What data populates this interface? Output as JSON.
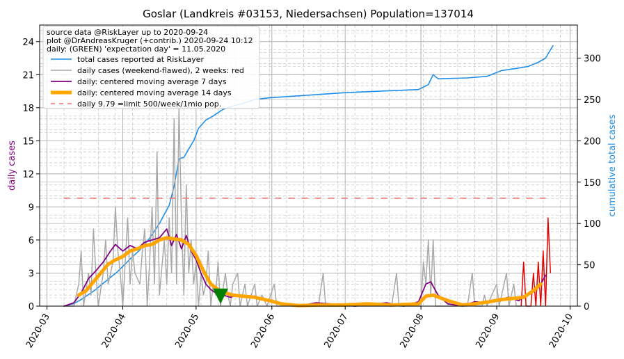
{
  "chart_data": {
    "type": "line",
    "title": "Goslar (Landkreis #03153, Niedersachsen) Population=137014",
    "ylabel_left": "daily cases",
    "ylabel_right": "cumulative total cases",
    "ylim_left": [
      0,
      25.5
    ],
    "ylim_right": [
      0,
      340
    ],
    "yticks_left": [
      0,
      3,
      6,
      9,
      12,
      15,
      18,
      21,
      24
    ],
    "yticks_right": [
      0,
      50,
      100,
      150,
      200,
      250,
      300
    ],
    "x_range": [
      "2020-02-27",
      "2020-10-04"
    ],
    "xticks": [
      "2020-03",
      "2020-04",
      "2020-05",
      "2020-06",
      "2020-07",
      "2020-08",
      "2020-09",
      "2020-10"
    ],
    "xtick_dates": [
      "2020-03-01",
      "2020-04-01",
      "2020-05-01",
      "2020-06-01",
      "2020-07-01",
      "2020-08-01",
      "2020-09-01",
      "2020-10-01"
    ],
    "grid": true,
    "legend_position": "top-left",
    "annotation": {
      "lines": [
        "source data @RiskLayer up to 2020-09-24",
        "plot @DrAndreasKruger (+contrib.) 2020-09-24 10:12",
        "daily: (GREEN) 'expectation day' = 11.05.2020"
      ]
    },
    "expectation_day": {
      "date": "2020-05-11",
      "value": 0.9,
      "color": "#008000"
    },
    "series": [
      {
        "name": "total cases reported at RiskLayer",
        "axis": "right",
        "color": "#1f8ee8",
        "width": 1.6,
        "points": [
          [
            "2020-03-08",
            0
          ],
          [
            "2020-03-12",
            3
          ],
          [
            "2020-03-15",
            8
          ],
          [
            "2020-03-20",
            18
          ],
          [
            "2020-03-25",
            30
          ],
          [
            "2020-03-30",
            42
          ],
          [
            "2020-04-04",
            57
          ],
          [
            "2020-04-08",
            68
          ],
          [
            "2020-04-12",
            82
          ],
          [
            "2020-04-16",
            100
          ],
          [
            "2020-04-20",
            122
          ],
          [
            "2020-04-22",
            145
          ],
          [
            "2020-04-24",
            178
          ],
          [
            "2020-04-26",
            180
          ],
          [
            "2020-04-28",
            190
          ],
          [
            "2020-04-30",
            200
          ],
          [
            "2020-05-02",
            215
          ],
          [
            "2020-05-05",
            225
          ],
          [
            "2020-05-08",
            230
          ],
          [
            "2020-05-12",
            238
          ],
          [
            "2020-05-16",
            242
          ],
          [
            "2020-05-20",
            245
          ],
          [
            "2020-05-25",
            250
          ],
          [
            "2020-05-31",
            252
          ],
          [
            "2020-06-10",
            254
          ],
          [
            "2020-06-20",
            256
          ],
          [
            "2020-06-30",
            258
          ],
          [
            "2020-07-15",
            260
          ],
          [
            "2020-07-31",
            262
          ],
          [
            "2020-08-04",
            268
          ],
          [
            "2020-08-06",
            280
          ],
          [
            "2020-08-08",
            275
          ],
          [
            "2020-08-20",
            276
          ],
          [
            "2020-08-28",
            278
          ],
          [
            "2020-09-03",
            285
          ],
          [
            "2020-09-10",
            288
          ],
          [
            "2020-09-14",
            290
          ],
          [
            "2020-09-18",
            295
          ],
          [
            "2020-09-21",
            300
          ],
          [
            "2020-09-23",
            310
          ],
          [
            "2020-09-24",
            315
          ]
        ]
      },
      {
        "name": "daily cases (weekend-flawed), 2 weeks: red",
        "axis": "left",
        "color": "#a9a9a9",
        "red_color": "#e00000",
        "width": 1.5,
        "red_from": "2020-09-11",
        "points": [
          [
            "2020-03-08",
            0
          ],
          [
            "2020-03-12",
            0
          ],
          [
            "2020-03-14",
            2
          ],
          [
            "2020-03-15",
            5
          ],
          [
            "2020-03-16",
            0
          ],
          [
            "2020-03-18",
            3
          ],
          [
            "2020-03-19",
            1
          ],
          [
            "2020-03-20",
            7
          ],
          [
            "2020-03-21",
            3
          ],
          [
            "2020-03-22",
            0
          ],
          [
            "2020-03-24",
            3
          ],
          [
            "2020-03-25",
            6
          ],
          [
            "2020-03-26",
            2
          ],
          [
            "2020-03-28",
            4
          ],
          [
            "2020-03-29",
            9
          ],
          [
            "2020-03-30",
            5
          ],
          [
            "2020-03-31",
            3
          ],
          [
            "2020-04-01",
            0
          ],
          [
            "2020-04-03",
            8
          ],
          [
            "2020-04-04",
            2
          ],
          [
            "2020-04-05",
            5
          ],
          [
            "2020-04-06",
            3
          ],
          [
            "2020-04-08",
            2
          ],
          [
            "2020-04-09",
            5
          ],
          [
            "2020-04-10",
            7
          ],
          [
            "2020-04-11",
            0
          ],
          [
            "2020-04-12",
            4
          ],
          [
            "2020-04-13",
            9
          ],
          [
            "2020-04-14",
            2
          ],
          [
            "2020-04-15",
            14
          ],
          [
            "2020-04-16",
            1
          ],
          [
            "2020-04-18",
            6
          ],
          [
            "2020-04-19",
            2
          ],
          [
            "2020-04-20",
            8
          ],
          [
            "2020-04-21",
            3
          ],
          [
            "2020-04-22",
            17
          ],
          [
            "2020-04-23",
            2
          ],
          [
            "2020-04-24",
            18
          ],
          [
            "2020-04-25",
            8
          ],
          [
            "2020-04-26",
            1
          ],
          [
            "2020-04-27",
            11
          ],
          [
            "2020-04-28",
            3
          ],
          [
            "2020-04-29",
            6
          ],
          [
            "2020-04-30",
            2
          ],
          [
            "2020-05-01",
            4
          ],
          [
            "2020-05-02",
            0
          ],
          [
            "2020-05-03",
            3
          ],
          [
            "2020-05-04",
            1
          ],
          [
            "2020-05-05",
            2
          ],
          [
            "2020-05-06",
            5
          ],
          [
            "2020-05-07",
            0
          ],
          [
            "2020-05-08",
            2
          ],
          [
            "2020-05-09",
            1
          ],
          [
            "2020-05-10",
            4
          ],
          [
            "2020-05-11",
            0
          ],
          [
            "2020-05-13",
            3
          ],
          [
            "2020-05-14",
            1
          ],
          [
            "2020-05-15",
            0
          ],
          [
            "2020-05-16",
            2
          ],
          [
            "2020-05-18",
            3
          ],
          [
            "2020-05-19",
            0
          ],
          [
            "2020-05-21",
            2
          ],
          [
            "2020-05-22",
            0
          ],
          [
            "2020-05-25",
            2
          ],
          [
            "2020-05-26",
            0
          ],
          [
            "2020-05-28",
            1
          ],
          [
            "2020-05-30",
            0
          ],
          [
            "2020-06-02",
            2
          ],
          [
            "2020-06-03",
            0
          ],
          [
            "2020-06-20",
            0
          ],
          [
            "2020-06-22",
            3
          ],
          [
            "2020-06-23",
            0
          ],
          [
            "2020-07-20",
            0
          ],
          [
            "2020-07-22",
            3
          ],
          [
            "2020-07-23",
            0
          ],
          [
            "2020-08-01",
            0
          ],
          [
            "2020-08-02",
            4
          ],
          [
            "2020-08-03",
            2
          ],
          [
            "2020-08-04",
            6
          ],
          [
            "2020-08-05",
            1
          ],
          [
            "2020-08-06",
            6
          ],
          [
            "2020-08-07",
            0
          ],
          [
            "2020-08-20",
            0
          ],
          [
            "2020-08-22",
            3
          ],
          [
            "2020-08-23",
            0
          ],
          [
            "2020-08-26",
            0
          ],
          [
            "2020-08-27",
            1
          ],
          [
            "2020-08-28",
            0
          ],
          [
            "2020-09-01",
            2
          ],
          [
            "2020-09-02",
            0
          ],
          [
            "2020-09-04",
            2
          ],
          [
            "2020-09-05",
            3
          ],
          [
            "2020-09-06",
            0
          ],
          [
            "2020-09-08",
            2
          ],
          [
            "2020-09-09",
            0
          ],
          [
            "2020-09-11",
            0
          ],
          [
            "2020-09-12",
            4
          ],
          [
            "2020-09-13",
            0
          ],
          [
            "2020-09-15",
            0
          ],
          [
            "2020-09-16",
            3
          ],
          [
            "2020-09-17",
            0
          ],
          [
            "2020-09-18",
            4
          ],
          [
            "2020-09-19",
            0
          ],
          [
            "2020-09-20",
            5
          ],
          [
            "2020-09-21",
            0
          ],
          [
            "2020-09-22",
            8
          ],
          [
            "2020-09-23",
            3
          ]
        ]
      },
      {
        "name": "daily: centered moving average 7 days",
        "axis": "left",
        "color": "#800080",
        "width": 1.8,
        "points": [
          [
            "2020-03-08",
            0
          ],
          [
            "2020-03-12",
            0.3
          ],
          [
            "2020-03-15",
            1.2
          ],
          [
            "2020-03-18",
            2.5
          ],
          [
            "2020-03-21",
            3.2
          ],
          [
            "2020-03-24",
            4.0
          ],
          [
            "2020-03-27",
            5.0
          ],
          [
            "2020-03-29",
            5.6
          ],
          [
            "2020-04-01",
            5.0
          ],
          [
            "2020-04-04",
            5.5
          ],
          [
            "2020-04-07",
            5.2
          ],
          [
            "2020-04-10",
            5.8
          ],
          [
            "2020-04-13",
            6.0
          ],
          [
            "2020-04-16",
            6.2
          ],
          [
            "2020-04-19",
            7.0
          ],
          [
            "2020-04-21",
            5.5
          ],
          [
            "2020-04-23",
            6.5
          ],
          [
            "2020-04-25",
            5.2
          ],
          [
            "2020-04-27",
            6.4
          ],
          [
            "2020-04-29",
            5.0
          ],
          [
            "2020-05-01",
            4.2
          ],
          [
            "2020-05-03",
            3.0
          ],
          [
            "2020-05-05",
            2.0
          ],
          [
            "2020-05-07",
            1.5
          ],
          [
            "2020-05-09",
            1.2
          ],
          [
            "2020-05-12",
            1.0
          ],
          [
            "2020-05-15",
            0.8
          ],
          [
            "2020-05-18",
            1.0
          ],
          [
            "2020-05-22",
            0.8
          ],
          [
            "2020-05-26",
            0.7
          ],
          [
            "2020-05-30",
            0.5
          ],
          [
            "2020-06-05",
            0.2
          ],
          [
            "2020-06-12",
            0
          ],
          [
            "2020-06-19",
            0.3
          ],
          [
            "2020-06-25",
            0.2
          ],
          [
            "2020-07-05",
            0
          ],
          [
            "2020-07-18",
            0.3
          ],
          [
            "2020-07-25",
            0
          ],
          [
            "2020-07-31",
            0.4
          ],
          [
            "2020-08-03",
            2.0
          ],
          [
            "2020-08-05",
            2.2
          ],
          [
            "2020-08-08",
            1.0
          ],
          [
            "2020-08-12",
            0.2
          ],
          [
            "2020-08-18",
            0
          ],
          [
            "2020-08-23",
            0.4
          ],
          [
            "2020-08-28",
            0.3
          ],
          [
            "2020-09-02",
            0.6
          ],
          [
            "2020-09-06",
            0.8
          ],
          [
            "2020-09-10",
            0.5
          ],
          [
            "2020-09-13",
            1.0
          ],
          [
            "2020-09-16",
            1.5
          ],
          [
            "2020-09-19",
            2.0
          ],
          [
            "2020-09-21",
            2.8
          ]
        ]
      },
      {
        "name": "daily: centered moving average 14 days",
        "axis": "left",
        "color": "#ffa500",
        "width": 5,
        "points": [
          [
            "2020-03-14",
            1.0
          ],
          [
            "2020-03-17",
            1.4
          ],
          [
            "2020-03-20",
            2.2
          ],
          [
            "2020-03-23",
            3.0
          ],
          [
            "2020-03-26",
            3.8
          ],
          [
            "2020-03-29",
            4.2
          ],
          [
            "2020-04-01",
            4.5
          ],
          [
            "2020-04-04",
            5.0
          ],
          [
            "2020-04-07",
            5.2
          ],
          [
            "2020-04-10",
            5.5
          ],
          [
            "2020-04-13",
            5.6
          ],
          [
            "2020-04-16",
            6.0
          ],
          [
            "2020-04-19",
            6.2
          ],
          [
            "2020-04-22",
            6.1
          ],
          [
            "2020-04-25",
            6.0
          ],
          [
            "2020-04-28",
            5.6
          ],
          [
            "2020-05-01",
            4.6
          ],
          [
            "2020-05-04",
            3.2
          ],
          [
            "2020-05-07",
            2.0
          ],
          [
            "2020-05-10",
            1.5
          ],
          [
            "2020-05-13",
            1.2
          ],
          [
            "2020-05-16",
            1.0
          ],
          [
            "2020-05-20",
            0.9
          ],
          [
            "2020-05-25",
            0.8
          ],
          [
            "2020-05-31",
            0.5
          ],
          [
            "2020-06-05",
            0.2
          ],
          [
            "2020-06-12",
            0.05
          ],
          [
            "2020-06-20",
            0.1
          ],
          [
            "2020-06-30",
            0.1
          ],
          [
            "2020-07-10",
            0.2
          ],
          [
            "2020-07-20",
            0.1
          ],
          [
            "2020-07-31",
            0.2
          ],
          [
            "2020-08-03",
            0.9
          ],
          [
            "2020-08-06",
            1.0
          ],
          [
            "2020-08-12",
            0.5
          ],
          [
            "2020-08-18",
            0.1
          ],
          [
            "2020-08-23",
            0.2
          ],
          [
            "2020-08-29",
            0.4
          ],
          [
            "2020-09-03",
            0.6
          ],
          [
            "2020-09-08",
            0.7
          ],
          [
            "2020-09-12",
            0.8
          ],
          [
            "2020-09-16",
            1.4
          ],
          [
            "2020-09-19",
            2.0
          ]
        ]
      },
      {
        "name": "daily 9.79 =limit 500/week/1mio pop.",
        "axis": "left",
        "color": "#f07070",
        "dashed": true,
        "width": 1.5,
        "points": [
          [
            "2020-03-08",
            9.79
          ],
          [
            "2020-09-24",
            9.79
          ]
        ]
      }
    ]
  }
}
